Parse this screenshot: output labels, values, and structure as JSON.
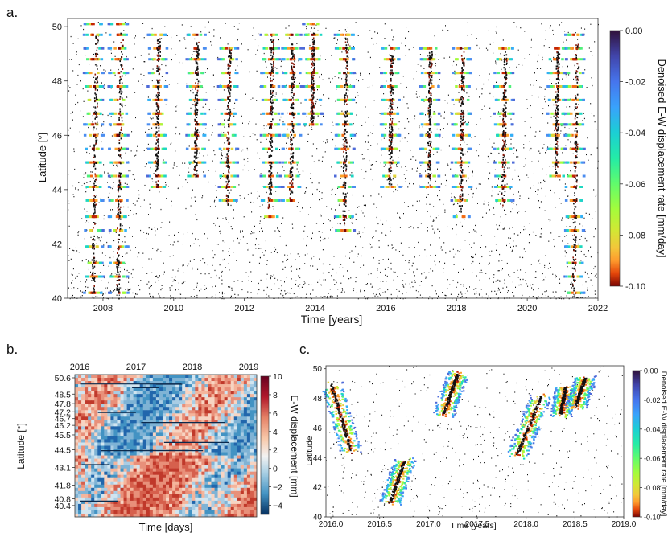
{
  "panels": {
    "a": {
      "letter": "a."
    },
    "b": {
      "letter": "b."
    },
    "c": {
      "letter": "c."
    }
  },
  "chart_data": [
    {
      "type": "scatter",
      "panel": "a",
      "xlabel": "Time [years]",
      "ylabel": "Latitude [°]",
      "xlim": [
        2007.0,
        2022.0
      ],
      "ylim": [
        40,
        50.3
      ],
      "x_ticks": [
        2008,
        2010,
        2012,
        2014,
        2016,
        2018,
        2020,
        2022
      ],
      "y_ticks": [
        40,
        42,
        44,
        46,
        48,
        50
      ],
      "colorbar": {
        "label": "Denoised E-W displacement rate [mm/day]",
        "min": -0.1,
        "max": 0.0,
        "ticks": [
          "0.00",
          "-0.02",
          "-0.04",
          "-0.06",
          "-0.08",
          "-0.10"
        ],
        "colormap": "turbo_r"
      },
      "events": [
        {
          "t": 2007.7,
          "lat_from": 40.1,
          "lat_to": 50.0
        },
        {
          "t": 2008.4,
          "lat_from": 40.0,
          "lat_to": 49.8
        },
        {
          "t": 2009.5,
          "lat_from": 44.2,
          "lat_to": 49.6
        },
        {
          "t": 2010.6,
          "lat_from": 44.5,
          "lat_to": 49.5
        },
        {
          "t": 2011.5,
          "lat_from": 43.4,
          "lat_to": 49.2
        },
        {
          "t": 2012.7,
          "lat_from": 43.3,
          "lat_to": 49.6
        },
        {
          "t": 2013.3,
          "lat_from": 43.7,
          "lat_to": 49.4
        },
        {
          "t": 2013.9,
          "lat_from": 46.5,
          "lat_to": 49.8
        },
        {
          "t": 2014.8,
          "lat_from": 42.6,
          "lat_to": 49.6
        },
        {
          "t": 2016.1,
          "lat_from": 44.2,
          "lat_to": 49.0
        },
        {
          "t": 2017.2,
          "lat_from": 44.4,
          "lat_to": 49.1
        },
        {
          "t": 2018.1,
          "lat_from": 43.2,
          "lat_to": 49.1
        },
        {
          "t": 2019.3,
          "lat_from": 43.4,
          "lat_to": 49.1
        },
        {
          "t": 2020.8,
          "lat_from": 44.6,
          "lat_to": 49.1
        },
        {
          "t": 2021.3,
          "lat_from": 40.2,
          "lat_to": 49.4
        }
      ]
    },
    {
      "type": "heatmap",
      "panel": "b",
      "xlabel": "Time [days]",
      "ylabel": "Latitude [°]",
      "top_ticks": [
        "2016",
        "2017",
        "2018",
        "2019"
      ],
      "y_ticks": [
        "50.6",
        "48.5",
        "47.8",
        "47.2",
        "46.7",
        "46.2",
        "45.5",
        "44.5",
        "43.1",
        "41.8",
        "40.8",
        "40.4"
      ],
      "colorbar": {
        "label": "E-W displacement [mm]",
        "min": -5,
        "max": 10,
        "ticks": [
          "10",
          "8",
          "6",
          "4",
          "2",
          "0",
          "−2",
          "−4"
        ],
        "colormap": "RdBu_r"
      }
    },
    {
      "type": "scatter",
      "panel": "c",
      "xlabel": "Time [years]",
      "ylabel": "Latitude",
      "xlim": [
        2015.95,
        2019.0
      ],
      "ylim": [
        40,
        50.2
      ],
      "x_ticks": [
        "2016.0",
        "2016.5",
        "2017.0",
        "2017.5",
        "2018.0",
        "2018.5",
        "2019.0"
      ],
      "y_ticks": [
        40,
        42,
        44,
        46,
        48,
        50
      ],
      "colorbar": {
        "label": "Denoised E-W displacement rate [mm/day]",
        "min": -0.1,
        "max": 0.0,
        "ticks": [
          "0.00",
          "-0.02",
          "-0.04",
          "-0.06",
          "-0.08",
          "-0.10"
        ],
        "colormap": "turbo_r"
      },
      "events": [
        {
          "t0": 2016.0,
          "t1": 2016.2,
          "lat_from": 49.0,
          "lat_to": 44.5
        },
        {
          "t0": 2016.6,
          "t1": 2016.75,
          "lat_from": 41.0,
          "lat_to": 43.8
        },
        {
          "t0": 2017.15,
          "t1": 2017.3,
          "lat_from": 47.0,
          "lat_to": 49.8
        },
        {
          "t0": 2017.9,
          "t1": 2018.15,
          "lat_from": 44.2,
          "lat_to": 48.2
        },
        {
          "t0": 2018.35,
          "t1": 2018.4,
          "lat_from": 47.0,
          "lat_to": 48.8
        },
        {
          "t0": 2018.5,
          "t1": 2018.6,
          "lat_from": 47.5,
          "lat_to": 49.4
        }
      ]
    }
  ]
}
